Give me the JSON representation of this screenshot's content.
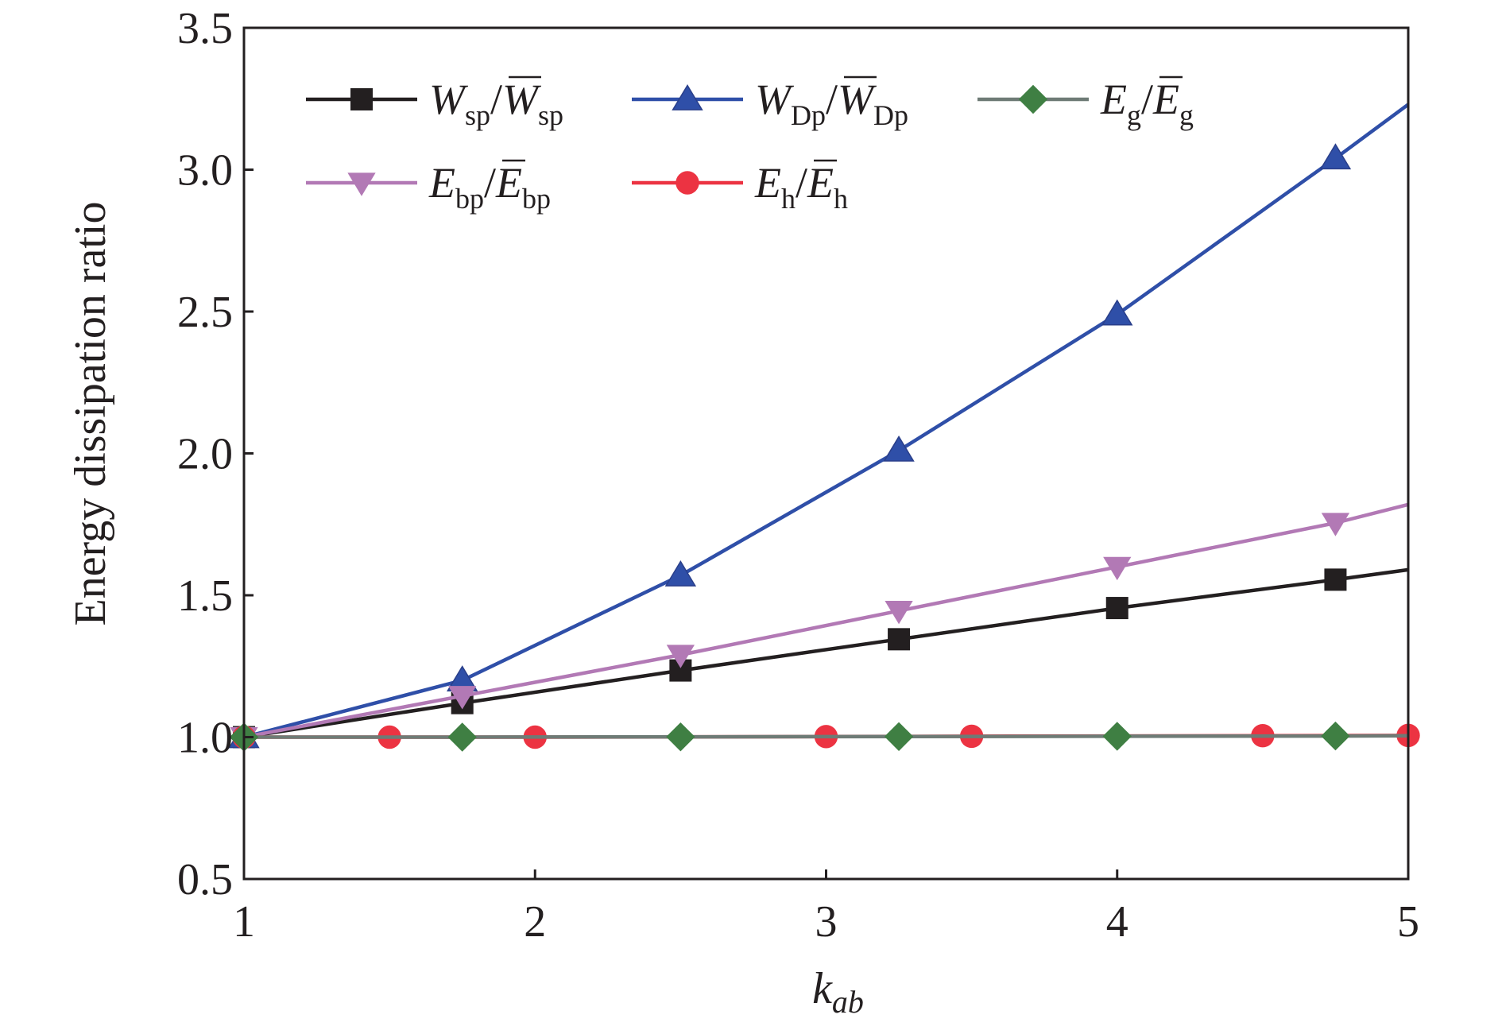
{
  "chart_data": {
    "type": "line",
    "xlabel": "k",
    "xlabel_sub": "ab",
    "ylabel": "Energy dissipation ratio",
    "xlim": [
      1,
      5
    ],
    "ylim": [
      0.5,
      3.5
    ],
    "xticks": [
      "1",
      "2",
      "3",
      "4",
      "5"
    ],
    "yticks": [
      "0.5",
      "1.0",
      "1.5",
      "2.0",
      "2.5",
      "3.0",
      "3.5"
    ],
    "grid": false,
    "legend_position": "top-left",
    "series": [
      {
        "id": "w-sp",
        "legend": {
          "main": "W",
          "sub": "sp",
          "bar_main": "W",
          "bar_sub": "sp"
        },
        "color": "#231f20",
        "marker": "square",
        "x": [
          1,
          1.75,
          2.5,
          3.25,
          4,
          4.75,
          5
        ],
        "y": [
          1.0,
          1.12,
          1.235,
          1.345,
          1.455,
          1.555,
          1.59
        ],
        "marker_x": [
          1,
          1.75,
          2.5,
          3.25,
          4,
          4.75
        ]
      },
      {
        "id": "w-dp",
        "legend": {
          "main": "W",
          "sub": "Dp",
          "bar_main": "W",
          "bar_sub": "Dp"
        },
        "color": "#2f4fa8",
        "marker": "triangle-up",
        "x": [
          1,
          1.75,
          2.5,
          3.25,
          4,
          4.75,
          5
        ],
        "y": [
          1.0,
          1.2,
          1.57,
          2.01,
          2.49,
          3.04,
          3.23
        ],
        "marker_x": [
          1,
          1.75,
          2.5,
          3.25,
          4,
          4.75
        ]
      },
      {
        "id": "e-bp",
        "legend": {
          "main": "E",
          "sub": "bp",
          "bar_main": "E",
          "bar_sub": "bp"
        },
        "color": "#b279b5",
        "marker": "triangle-down",
        "x": [
          1,
          1.75,
          2.5,
          3.25,
          4,
          4.75,
          5
        ],
        "y": [
          1.0,
          1.145,
          1.29,
          1.445,
          1.6,
          1.755,
          1.82
        ],
        "marker_x": [
          1,
          1.75,
          2.5,
          3.25,
          4,
          4.75
        ]
      },
      {
        "id": "e-h",
        "legend": {
          "main": "E",
          "sub": "h",
          "bar_main": "E",
          "bar_sub": "h"
        },
        "color": "#ec3342",
        "marker": "circle",
        "x": [
          1,
          1.5,
          2,
          3,
          3.5,
          4.5,
          5
        ],
        "y": [
          1.0,
          1.0,
          1.0,
          1.002,
          1.003,
          1.005,
          1.006
        ],
        "marker_x": [
          1,
          1.5,
          2,
          3,
          3.5,
          4.5,
          5
        ]
      },
      {
        "id": "e-g",
        "legend": {
          "main": "E",
          "sub": "g",
          "bar_main": "E",
          "bar_sub": "g"
        },
        "color": "#3f7f43",
        "marker": "diamond",
        "line_color": "#6e7b76",
        "x": [
          1,
          1.75,
          2.5,
          3.25,
          4,
          4.75,
          5
        ],
        "y": [
          1.0,
          1.0,
          1.001,
          1.002,
          1.003,
          1.004,
          1.005
        ],
        "marker_x": [
          1,
          1.75,
          2.5,
          3.25,
          4,
          4.75
        ]
      }
    ],
    "legend_order": [
      "w-sp",
      "w-dp",
      "e-g",
      "e-bp",
      "e-h"
    ]
  }
}
